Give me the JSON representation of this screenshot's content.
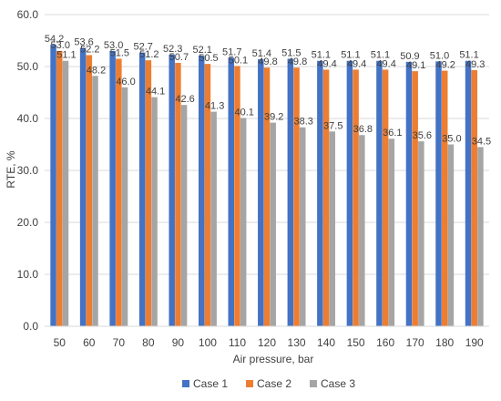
{
  "chart_data": {
    "type": "bar",
    "xlabel": "Air pressure, bar",
    "ylabel": "RTE, %",
    "ylim": [
      0,
      60
    ],
    "yticks": [
      "0.0",
      "10.0",
      "20.0",
      "30.0",
      "40.0",
      "50.0",
      "60.0"
    ],
    "grid": true,
    "legend_position": "bottom",
    "categories": [
      "50",
      "60",
      "70",
      "80",
      "90",
      "100",
      "110",
      "120",
      "130",
      "140",
      "150",
      "160",
      "170",
      "180",
      "190"
    ],
    "series": [
      {
        "name": "Case 1",
        "color": "#4472C4",
        "values": [
          54.2,
          53.6,
          53.0,
          52.7,
          52.3,
          52.1,
          51.7,
          51.4,
          51.5,
          51.1,
          51.1,
          51.1,
          50.9,
          51.0,
          51.1
        ],
        "labels": [
          "54.2",
          "53.6",
          "53.0",
          "52.7",
          "52.3",
          "52.1",
          "51.7",
          "51.4",
          "51.5",
          "51.1",
          "51.1",
          "51.1",
          "50.9",
          "51.0",
          "51.1"
        ]
      },
      {
        "name": "Case 2",
        "color": "#ED7D31",
        "values": [
          53.0,
          52.2,
          51.5,
          51.2,
          50.7,
          50.5,
          50.1,
          49.8,
          49.8,
          49.4,
          49.4,
          49.4,
          49.1,
          49.2,
          49.3
        ],
        "labels": [
          "53.0",
          "52.2",
          "51.5",
          "51.2",
          "50.7",
          "50.5",
          "50.1",
          "49.8",
          "49.8",
          "49.4",
          "49.4",
          "49.4",
          "49.1",
          "49.2",
          "49.3"
        ]
      },
      {
        "name": "Case 3",
        "color": "#A5A5A5",
        "values": [
          51.1,
          48.2,
          46.0,
          44.1,
          42.6,
          41.3,
          40.1,
          39.2,
          38.3,
          37.5,
          36.8,
          36.1,
          35.6,
          35.0,
          34.5
        ],
        "labels": [
          "51.1",
          "48.2",
          "46.0",
          "44.1",
          "42.6",
          "41.3",
          "40.1",
          "39.2",
          "38.3",
          "37.5",
          "36.8",
          "36.1",
          "35.6",
          "35.0",
          "34.5"
        ]
      }
    ]
  }
}
